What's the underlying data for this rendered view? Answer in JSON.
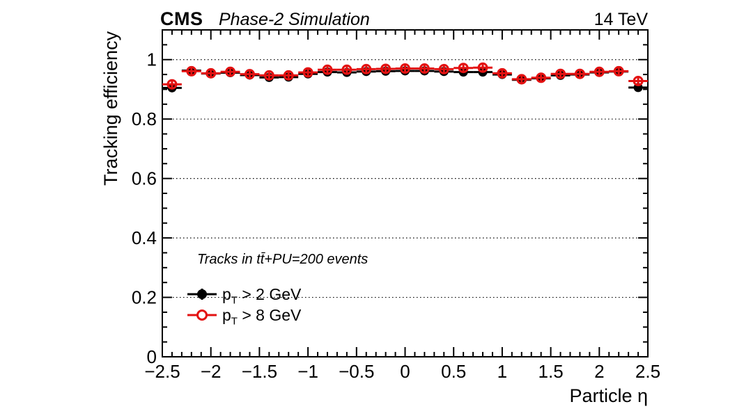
{
  "header": {
    "experiment": "CMS",
    "subtitle": "Phase-2 Simulation",
    "energy": "14 TeV"
  },
  "axis_titles": {
    "y": "Tracking efficiency",
    "x": "Particle η"
  },
  "legend": {
    "note": "Tracks in tt̄+PU=200 events",
    "entries": [
      {
        "marker": "filled-circle",
        "color": "#000000",
        "p": "p",
        "sub": "T",
        "rest": " > 2 GeV"
      },
      {
        "marker": "open-circle",
        "color": "#e31212",
        "p": "p",
        "sub": "T",
        "rest": " > 8 GeV"
      }
    ]
  },
  "chart_data": {
    "type": "scatter",
    "title": "CMS Phase-2 Simulation",
    "energy": "14 TeV",
    "xlabel": "Particle η",
    "ylabel": "Tracking efficiency",
    "xlim": [
      -2.5,
      2.5
    ],
    "ylim": [
      0,
      1.1
    ],
    "grid": "horizontal dotted lines at labeled y ticks",
    "gridlines": [
      0.2,
      0.4,
      0.6,
      0.8,
      1.0
    ],
    "legend_position": "inside lower-left",
    "x_major_step": 0.5,
    "x_minor_step": 0.1,
    "y_major_step": 0.2,
    "y_minor_step": 0.05,
    "bin_half_width": 0.1,
    "x": [
      -2.4,
      -2.2,
      -2.0,
      -1.8,
      -1.6,
      -1.4,
      -1.2,
      -1.0,
      -0.8,
      -0.6,
      -0.4,
      -0.2,
      0.0,
      0.2,
      0.4,
      0.6,
      0.8,
      1.0,
      1.2,
      1.4,
      1.6,
      1.8,
      2.0,
      2.2,
      2.4
    ],
    "series": [
      {
        "name": "pT > 2 GeV",
        "marker": "filled-circle",
        "color": "#000000",
        "values": [
          0.905,
          0.963,
          0.953,
          0.956,
          0.948,
          0.94,
          0.941,
          0.952,
          0.958,
          0.957,
          0.96,
          0.961,
          0.962,
          0.962,
          0.96,
          0.958,
          0.958,
          0.95,
          0.932,
          0.937,
          0.947,
          0.95,
          0.957,
          0.96,
          0.906
        ]
      },
      {
        "name": "pT > 8 GeV",
        "marker": "open-circle",
        "color": "#e31212",
        "values": [
          0.917,
          0.961,
          0.954,
          0.959,
          0.951,
          0.947,
          0.947,
          0.957,
          0.966,
          0.966,
          0.968,
          0.969,
          0.97,
          0.97,
          0.968,
          0.972,
          0.973,
          0.954,
          0.934,
          0.939,
          0.952,
          0.952,
          0.959,
          0.961,
          0.928
        ]
      }
    ],
    "x_ticks": [
      {
        "v": -2.5,
        "label": "−2.5"
      },
      {
        "v": -2.0,
        "label": "−2"
      },
      {
        "v": -1.5,
        "label": "−1.5"
      },
      {
        "v": -1.0,
        "label": "−1"
      },
      {
        "v": -0.5,
        "label": "−0.5"
      },
      {
        "v": 0.0,
        "label": "0"
      },
      {
        "v": 0.5,
        "label": "0.5"
      },
      {
        "v": 1.0,
        "label": "1"
      },
      {
        "v": 1.5,
        "label": "1.5"
      },
      {
        "v": 2.0,
        "label": "2"
      },
      {
        "v": 2.5,
        "label": "2.5"
      }
    ],
    "y_ticks": [
      {
        "v": 0.0,
        "label": "0"
      },
      {
        "v": 0.2,
        "label": "0.2"
      },
      {
        "v": 0.4,
        "label": "0.4"
      },
      {
        "v": 0.6,
        "label": "0.6"
      },
      {
        "v": 0.8,
        "label": "0.8"
      },
      {
        "v": 1.0,
        "label": "1"
      }
    ]
  }
}
